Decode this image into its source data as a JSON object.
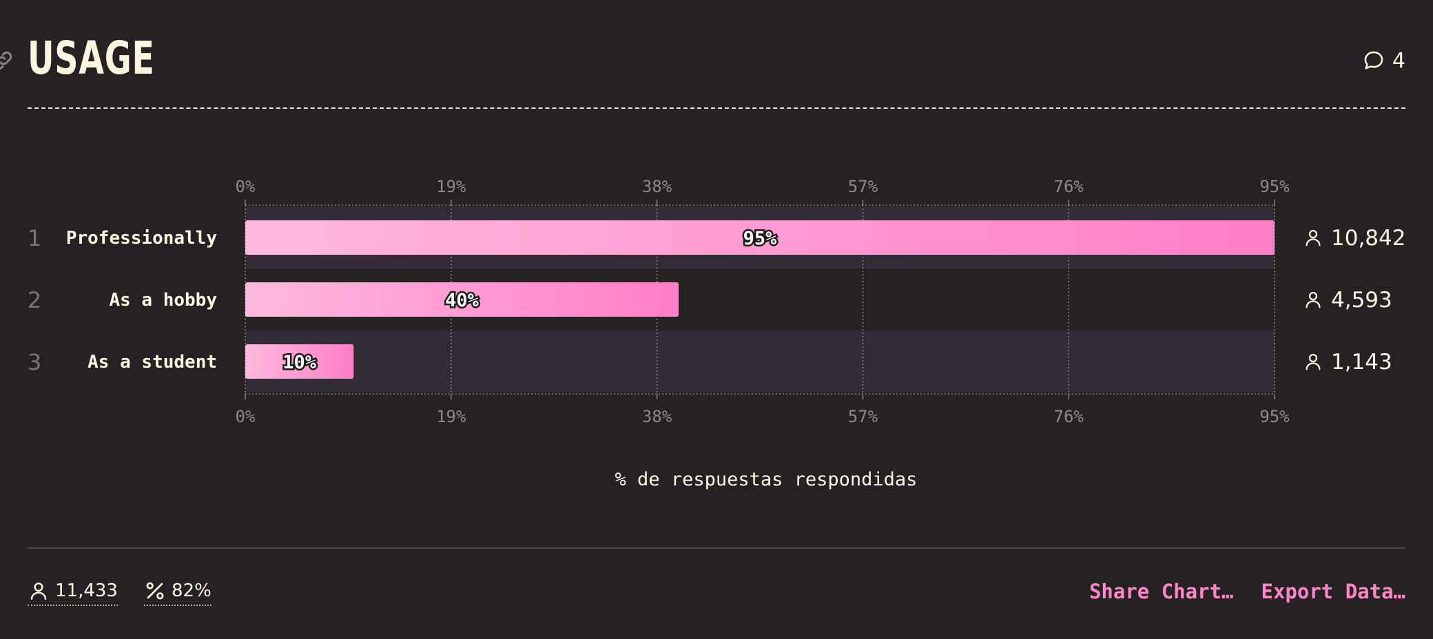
{
  "header": {
    "title": "USAGE",
    "link_icon": "link-icon",
    "comment_icon": "speech-bubble-icon",
    "comment_count": "4"
  },
  "colors": {
    "background": "#262223",
    "bar_gradient_start": "#ffb9dd",
    "bar_gradient_end": "#ff7ec7",
    "highlight_band": "#332b36",
    "accent": "#ff86c8",
    "title": "#fdf4df"
  },
  "chart_data": {
    "type": "bar",
    "orientation": "horizontal",
    "xlabel": "% de respuestas respondidas",
    "xlim": [
      0,
      95
    ],
    "ticks": [
      0,
      19,
      38,
      57,
      76,
      95
    ],
    "tick_labels": [
      "0%",
      "19%",
      "38%",
      "57%",
      "76%",
      "95%"
    ],
    "grid": true,
    "categories": [
      "Professionally",
      "As a hobby",
      "As a student"
    ],
    "ranks": [
      "1",
      "2",
      "3"
    ],
    "values": [
      95,
      40,
      10
    ],
    "value_labels": [
      "95%",
      "40%",
      "10%"
    ],
    "counts": [
      "10,842",
      "4,593",
      "1,143"
    ],
    "count_icon": "user-icon"
  },
  "footer": {
    "respondents": "11,433",
    "respondents_icon": "user-icon",
    "percent": "82%",
    "percent_icon": "percent-icon",
    "share_label": "Share Chart…",
    "export_label": "Export Data…"
  }
}
